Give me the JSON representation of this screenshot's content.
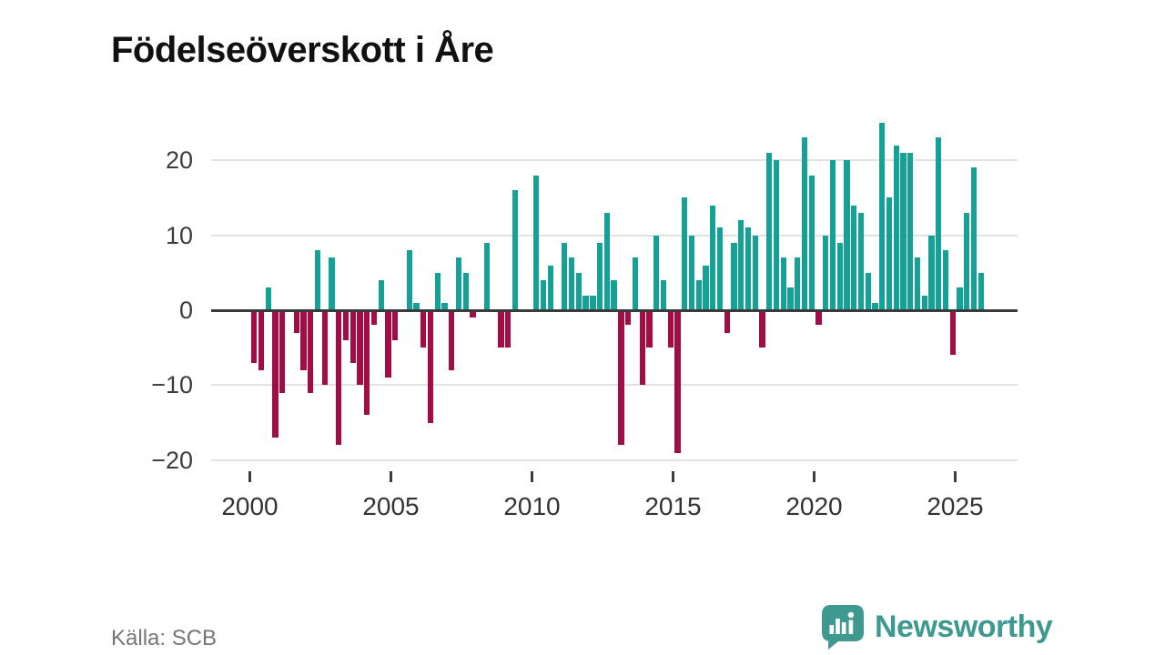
{
  "title": "Födelseöverskott i Åre",
  "source": "Källa: SCB",
  "brand": {
    "name": "Newsworthy",
    "icon": "speech-bubble-bar-chart-icon",
    "color": "#3e9a90"
  },
  "chart_data": {
    "type": "bar",
    "title": "Födelseöverskott i Åre",
    "frequency": "quarterly",
    "xlabel": "",
    "ylabel": "",
    "ylim": [
      -22,
      27
    ],
    "grid": "horizontal",
    "legend_position": "none",
    "positive_color": "#15a195",
    "negative_color": "#a30d45",
    "y_ticks": [
      20,
      10,
      0,
      -10,
      -20
    ],
    "y_tick_labels": [
      "20",
      "10",
      "0",
      "−10",
      "−20"
    ],
    "x_tick_labels": [
      "2000",
      "2005",
      "2010",
      "2015",
      "2020",
      "2025"
    ],
    "years": [
      {
        "year": 2000,
        "values": [
          -7,
          -8,
          3,
          -17
        ]
      },
      {
        "year": 2001,
        "values": [
          -11,
          0,
          -3,
          -8
        ]
      },
      {
        "year": 2002,
        "values": [
          -11,
          8,
          -10,
          7
        ]
      },
      {
        "year": 2003,
        "values": [
          -18,
          -4,
          -7,
          -10
        ]
      },
      {
        "year": 2004,
        "values": [
          -14,
          -2,
          4,
          -9
        ]
      },
      {
        "year": 2005,
        "values": [
          -4,
          0,
          8,
          1
        ]
      },
      {
        "year": 2006,
        "values": [
          -5,
          -15,
          5,
          1
        ]
      },
      {
        "year": 2007,
        "values": [
          -8,
          7,
          5,
          -1
        ]
      },
      {
        "year": 2008,
        "values": [
          0,
          9,
          0,
          -5
        ]
      },
      {
        "year": 2009,
        "values": [
          -5,
          16,
          0,
          0
        ]
      },
      {
        "year": 2010,
        "values": [
          18,
          4,
          6,
          0
        ]
      },
      {
        "year": 2011,
        "values": [
          9,
          7,
          5,
          2
        ]
      },
      {
        "year": 2012,
        "values": [
          2,
          9,
          13,
          4
        ]
      },
      {
        "year": 2013,
        "values": [
          -18,
          -2,
          7,
          -10
        ]
      },
      {
        "year": 2014,
        "values": [
          -5,
          10,
          4,
          -5
        ]
      },
      {
        "year": 2015,
        "values": [
          -19,
          15,
          10,
          4
        ]
      },
      {
        "year": 2016,
        "values": [
          6,
          14,
          11,
          -3
        ]
      },
      {
        "year": 2017,
        "values": [
          9,
          12,
          11,
          10
        ]
      },
      {
        "year": 2018,
        "values": [
          -5,
          21,
          20,
          7
        ]
      },
      {
        "year": 2019,
        "values": [
          3,
          7,
          23,
          18
        ]
      },
      {
        "year": 2020,
        "values": [
          -2,
          10,
          20,
          9
        ]
      },
      {
        "year": 2021,
        "values": [
          20,
          14,
          13,
          5
        ]
      },
      {
        "year": 2022,
        "values": [
          1,
          25,
          15,
          22
        ]
      },
      {
        "year": 2023,
        "values": [
          21,
          21,
          7,
          2
        ]
      },
      {
        "year": 2024,
        "values": [
          10,
          23,
          8,
          -6
        ]
      },
      {
        "year": 2025,
        "values": [
          3,
          13,
          19,
          5
        ]
      }
    ]
  }
}
